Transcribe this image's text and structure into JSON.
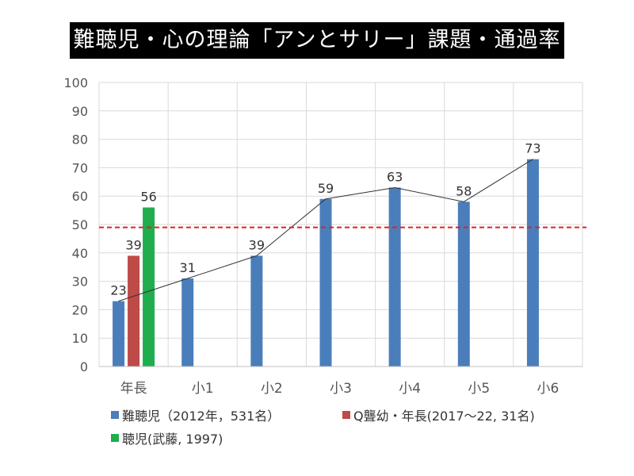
{
  "chart_data": {
    "type": "bar",
    "title": "難聴児・心の理論「アンとサリー」課題・通過率",
    "categories": [
      "年長",
      "小1",
      "小2",
      "小3",
      "小4",
      "小5",
      "小6"
    ],
    "series": [
      {
        "name": "難聴児（2012年，531名）",
        "color": "#4a7ebb",
        "values": [
          23,
          31,
          39,
          59,
          63,
          58,
          73
        ]
      },
      {
        "name": "Q聾幼・年長(2017〜22, 31名)",
        "color": "#be4b48",
        "values": [
          39,
          null,
          null,
          null,
          null,
          null,
          null
        ]
      },
      {
        "name": "聴児(武藤, 1997)",
        "color": "#1fad4e",
        "values": [
          56,
          null,
          null,
          null,
          null,
          null,
          null
        ]
      }
    ],
    "trend_line": {
      "series": "難聴児（2012年，531名）",
      "color": "#333333"
    },
    "reference_line": {
      "value": 49,
      "color": "#e02020",
      "style": "dashed"
    },
    "ylim": [
      0,
      100
    ],
    "yticks": [
      0,
      10,
      20,
      30,
      40,
      50,
      60,
      70,
      80,
      90,
      100
    ],
    "grid": true,
    "legend_position": "bottom",
    "xlabel": "",
    "ylabel": ""
  }
}
